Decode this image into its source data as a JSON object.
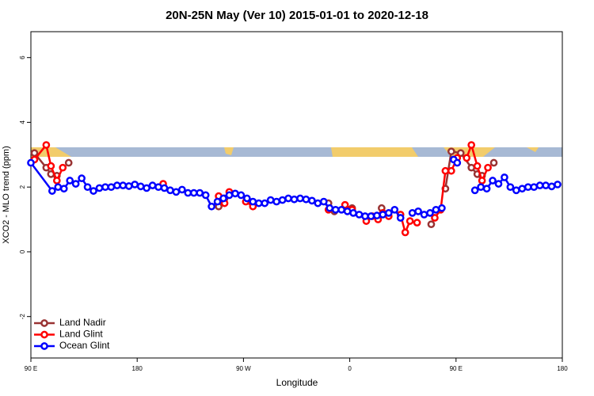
{
  "chart_data": {
    "type": "line",
    "title": "20N-25N May (Ver 10)   2015-01-01 to 2020-12-18",
    "x_label": "Longitude",
    "y_label": "XCO2 - MLO trend (ppm)",
    "xlim": [
      90,
      540
    ],
    "ylim": [
      -3.28,
      6.8
    ],
    "xticks": [
      {
        "value": 90,
        "label": "90 E"
      },
      180,
      {
        "value": 270,
        "label": "90 W"
      },
      {
        "value": 360,
        "label": "0"
      },
      {
        "value": 450,
        "label": "90 E"
      },
      {
        "value": 540,
        "label": "180"
      }
    ],
    "yticks": [
      -2,
      0,
      2,
      4,
      6
    ],
    "legend": "bottom-left",
    "series": [
      {
        "name": "Land Nadir",
        "color": "#993333",
        "x": [
          93,
          103,
          107,
          112,
          117,
          122,
          185,
          249,
          254,
          300,
          342,
          347,
          353,
          359,
          362,
          375,
          387,
          408,
          429,
          435,
          441,
          446,
          454,
          463,
          468,
          472,
          477,
          482
        ],
        "values": [
          3.05,
          2.6,
          2.4,
          2.35,
          null,
          2.75,
          null,
          1.4,
          1.65,
          null,
          1.5,
          1.25,
          null,
          1.3,
          1.35,
          null,
          1.35,
          null,
          0.85,
          null,
          1.95,
          3.1,
          3.05,
          2.6,
          2.4,
          2.35,
          null,
          2.75
        ]
      },
      {
        "name": "Land Glint",
        "color": "#ff0000",
        "x": [
          93,
          103,
          107,
          112,
          117,
          160,
          202,
          225,
          249,
          254,
          258,
          265,
          272,
          278,
          310,
          342,
          349,
          356,
          362,
          368,
          374,
          379,
          384,
          388,
          393,
          398,
          403,
          407,
          411,
          417,
          424,
          432,
          437,
          441,
          446,
          451,
          455,
          459,
          463,
          468,
          472,
          477
        ],
        "values": [
          2.85,
          3.3,
          2.65,
          2.2,
          2.6,
          null,
          2.1,
          null,
          1.72,
          1.5,
          1.85,
          null,
          1.55,
          1.4,
          null,
          1.3,
          null,
          1.45,
          1.3,
          null,
          0.95,
          1.1,
          1.0,
          1.2,
          1.1,
          null,
          1.15,
          0.6,
          0.95,
          0.9,
          null,
          1.05,
          1.3,
          2.5,
          2.5,
          2.9,
          null,
          2.9,
          3.3,
          2.65,
          2.2,
          2.6
        ]
      },
      {
        "name": "Ocean Glint",
        "color": "#0000ff",
        "x": [
          90,
          108,
          113,
          118,
          123,
          128,
          133,
          138,
          143,
          148,
          153,
          158,
          163,
          168,
          173,
          178,
          183,
          188,
          193,
          198,
          203,
          208,
          213,
          218,
          223,
          228,
          233,
          238,
          243,
          248,
          253,
          258,
          263,
          268,
          273,
          278,
          283,
          288,
          293,
          298,
          303,
          308,
          313,
          318,
          323,
          328,
          333,
          338,
          343,
          348,
          353,
          358,
          363,
          368,
          373,
          378,
          383,
          388,
          393,
          398,
          403,
          408,
          413,
          418,
          423,
          428,
          433,
          438,
          443,
          448,
          451,
          456,
          466,
          471,
          476,
          481,
          486,
          491,
          496,
          501,
          506,
          511,
          516,
          521,
          526,
          531,
          536
        ],
        "values": [
          2.75,
          1.88,
          2.0,
          1.95,
          2.2,
          2.1,
          2.27,
          2.0,
          1.88,
          1.97,
          2.0,
          2.0,
          2.05,
          2.05,
          2.03,
          2.08,
          2.02,
          1.97,
          2.05,
          2.0,
          1.97,
          1.9,
          1.85,
          1.92,
          1.82,
          1.82,
          1.82,
          1.75,
          1.4,
          1.55,
          1.65,
          1.75,
          1.8,
          1.75,
          1.65,
          1.55,
          1.5,
          1.5,
          1.6,
          1.55,
          1.6,
          1.65,
          1.62,
          1.65,
          1.62,
          1.58,
          1.5,
          1.55,
          1.35,
          1.3,
          1.3,
          1.25,
          1.2,
          1.15,
          1.1,
          1.1,
          1.12,
          1.15,
          1.2,
          1.3,
          1.05,
          null,
          1.2,
          1.25,
          1.15,
          1.2,
          1.3,
          1.35,
          null,
          2.85,
          2.75,
          null,
          1.9,
          2.0,
          1.95,
          2.2,
          2.1,
          2.3,
          2.0,
          1.9,
          1.95,
          2.0,
          2.0,
          2.05,
          2.05,
          2.02,
          2.08
        ]
      }
    ]
  }
}
